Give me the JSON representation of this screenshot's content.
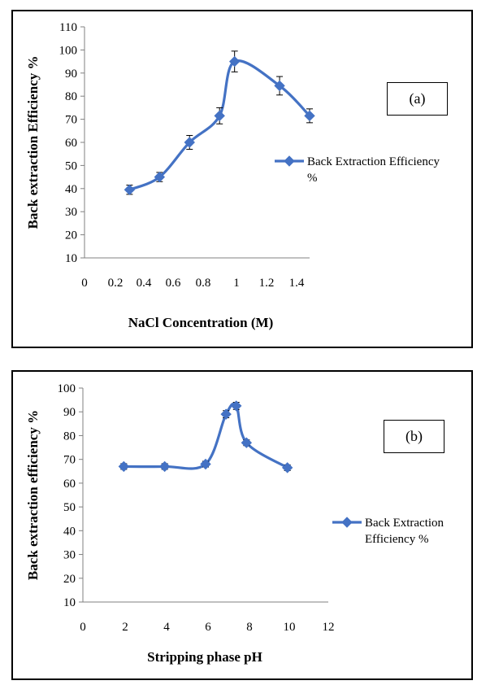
{
  "chart_data": [
    {
      "type": "line",
      "title": "",
      "panel_tag": "(a)",
      "xlabel": "NaCl Concentration (M)",
      "ylabel": "Back extraction  Efficiency %",
      "xlim": [
        0,
        1.5
      ],
      "ylim": [
        10,
        110
      ],
      "xticks": [
        "0",
        "0.2",
        "0.4",
        "0.6",
        "0.8",
        "1",
        "1.2",
        "1.4"
      ],
      "xtick_values": [
        0,
        0.2,
        0.4,
        0.6,
        0.8,
        1,
        1.2,
        1.4
      ],
      "yticks": [
        10,
        20,
        30,
        40,
        50,
        60,
        70,
        80,
        90,
        100,
        110
      ],
      "grid": false,
      "legend_position": "right",
      "series": [
        {
          "name": "Back Extraction Efficiency %",
          "legend_lines": [
            "Back Extraction Efficiency",
            "%"
          ],
          "color": "#4472C4",
          "marker": "diamond",
          "smooth": true,
          "x": [
            0.3,
            0.5,
            0.7,
            0.9,
            1.0,
            1.3,
            1.5
          ],
          "y": [
            39.5,
            45,
            60,
            71.5,
            95,
            84.5,
            71.5
          ],
          "error": [
            2,
            2,
            3,
            3.5,
            4.5,
            4,
            3
          ]
        }
      ]
    },
    {
      "type": "line",
      "title": "",
      "panel_tag": "(b)",
      "xlabel": "Stripping phase pH",
      "ylabel": "Back extraction efficiency %",
      "xlim": [
        0,
        12
      ],
      "ylim": [
        10,
        100
      ],
      "xticks": [
        "0",
        "2",
        "4",
        "6",
        "8",
        "10",
        "12"
      ],
      "xtick_values": [
        0,
        2,
        4,
        6,
        8,
        10,
        12
      ],
      "yticks": [
        10,
        20,
        30,
        40,
        50,
        60,
        70,
        80,
        90,
        100
      ],
      "grid": false,
      "legend_position": "right",
      "series": [
        {
          "name": "Back Extraction Efficiency %",
          "legend_lines": [
            "Back Extraction",
            "Efficiency %"
          ],
          "color": "#4472C4",
          "marker": "diamond",
          "smooth": true,
          "x": [
            2,
            4,
            6,
            7,
            7.5,
            8,
            10
          ],
          "y": [
            67,
            67,
            68,
            89,
            92.5,
            77,
            66.5
          ],
          "error": [
            1.2,
            1.2,
            1.2,
            1.5,
            1.5,
            1.2,
            1.2
          ]
        }
      ]
    }
  ]
}
